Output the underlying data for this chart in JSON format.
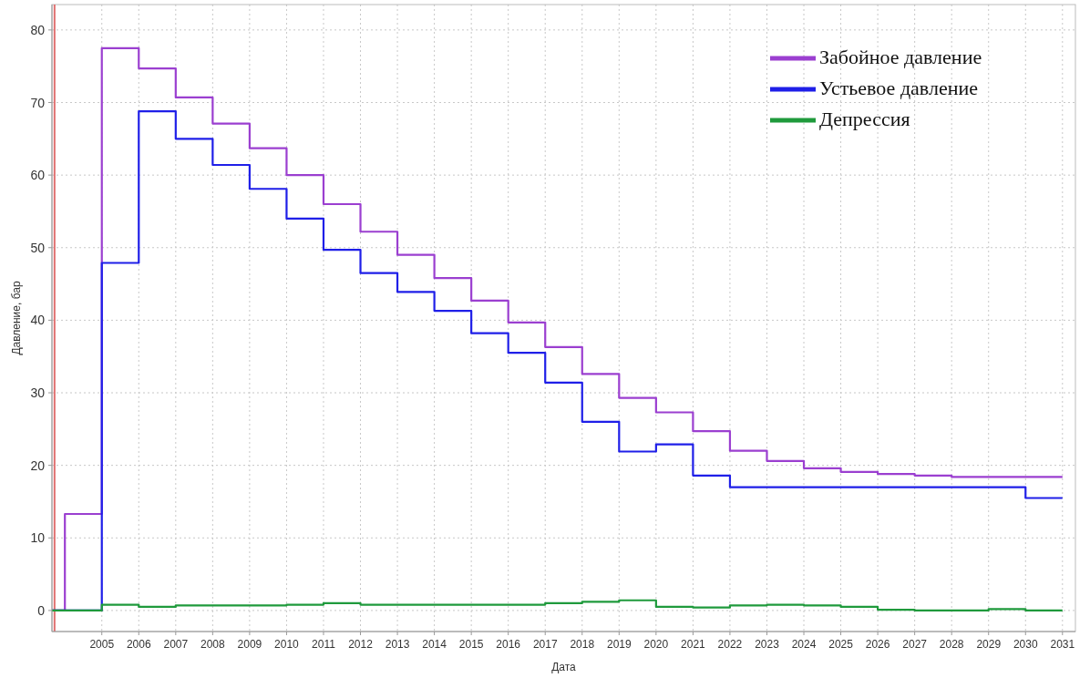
{
  "chart_data": {
    "type": "step",
    "xlabel": "Дата",
    "ylabel": "Давление, бар",
    "x": [
      2003.65,
      2004,
      2005,
      2006,
      2007,
      2008,
      2009,
      2010,
      2011,
      2012,
      2013,
      2014,
      2015,
      2016,
      2017,
      2018,
      2019,
      2020,
      2021,
      2022,
      2023,
      2024,
      2025,
      2026,
      2027,
      2028,
      2029,
      2030,
      2031
    ],
    "series": [
      {
        "name": "Забойное давление",
        "color": "#9b3fd0",
        "values": [
          0,
          13.3,
          77.5,
          74.7,
          70.7,
          67.1,
          63.7,
          60.0,
          56.0,
          52.2,
          49.0,
          45.8,
          42.7,
          39.7,
          36.3,
          32.6,
          29.3,
          27.3,
          24.7,
          22.0,
          20.6,
          19.6,
          19.1,
          18.8,
          18.6,
          18.4,
          18.4,
          18.4,
          18.4
        ]
      },
      {
        "name": "Устьевое давление",
        "color": "#1f1fe8",
        "values": [
          0,
          0,
          47.9,
          68.8,
          65.0,
          61.4,
          58.1,
          54.0,
          49.7,
          46.5,
          43.9,
          41.3,
          38.2,
          35.5,
          31.4,
          26.0,
          21.9,
          22.9,
          18.6,
          17.0,
          17.0,
          17.0,
          17.0,
          17.0,
          17.0,
          17.0,
          17.0,
          15.5,
          15.5
        ]
      },
      {
        "name": "Депрессия",
        "color": "#1f9a3c",
        "values": [
          0,
          0,
          0.8,
          0.5,
          0.7,
          0.7,
          0.7,
          0.8,
          1.0,
          0.8,
          0.8,
          0.8,
          0.8,
          0.8,
          1.0,
          1.2,
          1.4,
          0.5,
          0.4,
          0.7,
          0.8,
          0.7,
          0.5,
          0.1,
          0.0,
          0.0,
          0.2,
          0.0,
          0.0
        ]
      }
    ],
    "xlim": [
      2003.65,
      2031.35
    ],
    "ylim": [
      -2.9,
      83.5
    ],
    "xticks": [
      2005,
      2006,
      2007,
      2008,
      2009,
      2010,
      2011,
      2012,
      2013,
      2014,
      2015,
      2016,
      2017,
      2018,
      2019,
      2020,
      2021,
      2022,
      2023,
      2024,
      2025,
      2026,
      2027,
      2028,
      2029,
      2030,
      2031
    ],
    "yticks": [
      0,
      10,
      20,
      30,
      40,
      50,
      60,
      70,
      80
    ],
    "ref_lines": [
      {
        "axis": "x",
        "value": 2003.72,
        "color": "#e07070"
      }
    ],
    "grid": true,
    "legend": "top right",
    "line_style": "solid"
  }
}
